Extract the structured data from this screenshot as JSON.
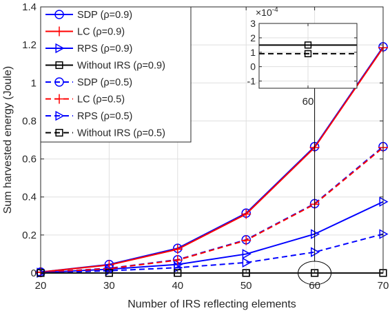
{
  "chart_data": [
    {
      "type": "line",
      "xlabel": "Number of IRS reflecting elements",
      "ylabel": "Sum harvested energy (Joule)",
      "x": [
        20,
        30,
        40,
        50,
        60,
        70
      ],
      "xlim": [
        20,
        70
      ],
      "ylim": [
        0,
        1.4
      ],
      "xticks": [
        "20",
        "30",
        "40",
        "50",
        "60",
        "70"
      ],
      "yticks": [
        "0",
        "0.2",
        "0.4",
        "0.6",
        "0.8",
        "1",
        "1.2",
        "1.4"
      ],
      "grid": true,
      "legend_position": "top-left",
      "series": [
        {
          "name": "SDP (ρ=0.9)",
          "color": "#0000ff",
          "dash": "solid",
          "marker": "circle",
          "values": [
            0.005,
            0.045,
            0.13,
            0.315,
            0.665,
            1.19
          ]
        },
        {
          "name": "LC  (ρ=0.9)",
          "color": "#ff0000",
          "dash": "solid",
          "marker": "plus",
          "values": [
            0.005,
            0.042,
            0.125,
            0.31,
            0.66,
            1.185
          ]
        },
        {
          "name": "RPS (ρ=0.9)",
          "color": "#0000ff",
          "dash": "solid",
          "marker": "triangle-right",
          "values": [
            0.002,
            0.02,
            0.045,
            0.1,
            0.205,
            0.375
          ]
        },
        {
          "name": "Without IRS (ρ=0.9)",
          "color": "#000000",
          "dash": "solid",
          "marker": "square",
          "values": [
            0.00015,
            0.00015,
            0.00015,
            0.00015,
            0.00015,
            0.00015
          ]
        },
        {
          "name": "SDP (ρ=0.5)",
          "color": "#0000ff",
          "dash": "dashed",
          "marker": "circle",
          "values": [
            0.003,
            0.025,
            0.07,
            0.175,
            0.365,
            0.665
          ]
        },
        {
          "name": "LC  (ρ=0.5)",
          "color": "#ff0000",
          "dash": "dashed",
          "marker": "plus",
          "values": [
            0.003,
            0.023,
            0.068,
            0.172,
            0.362,
            0.66
          ]
        },
        {
          "name": "RPS (ρ=0.5)",
          "color": "#0000ff",
          "dash": "dashed",
          "marker": "triangle-right",
          "values": [
            0.001,
            0.012,
            0.028,
            0.055,
            0.11,
            0.205
          ]
        },
        {
          "name": "Without IRS (ρ=0.5)",
          "color": "#000000",
          "dash": "dashed",
          "marker": "square",
          "values": [
            9e-05,
            9e-05,
            9e-05,
            9e-05,
            9e-05,
            9e-05
          ]
        }
      ],
      "annotation": {
        "type": "ellipse",
        "x": 60,
        "y": 0,
        "note": "zoom region"
      }
    },
    {
      "type": "line",
      "role": "inset",
      "x": [
        60
      ],
      "xlim": [
        59,
        61
      ],
      "ylim": [
        -1.5,
        3
      ],
      "xticks": [
        "60"
      ],
      "yticks": [
        "3",
        "2",
        "1",
        "0",
        "-1"
      ],
      "scale_label": "×10",
      "scale_exponent": "-4",
      "grid": true,
      "series": [
        {
          "color": "#000000",
          "dash": "solid",
          "marker": "square",
          "values": [
            1.5
          ]
        },
        {
          "color": "#000000",
          "dash": "dashed",
          "marker": "square",
          "values": [
            0.9
          ]
        }
      ]
    }
  ]
}
